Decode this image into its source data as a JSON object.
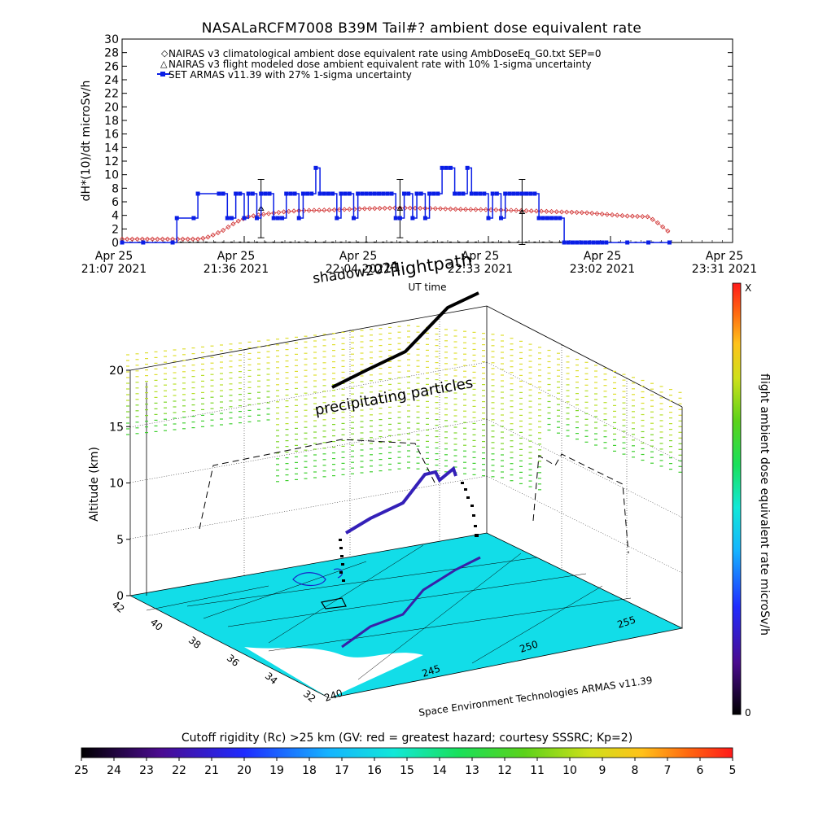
{
  "figure_title": "NASALaRCFM7008  B39M Tail#? ambient dose equivalent rate",
  "chart_data": [
    {
      "type": "line",
      "title": "NASALaRCFM7008  B39M Tail#? ambient dose equivalent rate",
      "ylabel": "dH*(10)/dt microSv/h",
      "xlabel": "UT time",
      "ylim": [
        0,
        30
      ],
      "y_ticks": [
        "0",
        "2",
        "4",
        "6",
        "8",
        "10",
        "12",
        "14",
        "16",
        "18",
        "20",
        "22",
        "24",
        "26",
        "28",
        "30"
      ],
      "x_ticks": [
        {
          "line1": "Apr 25",
          "line2": "21:07 2021"
        },
        {
          "line1": "Apr 25",
          "line2": "21:36 2021"
        },
        {
          "line1": "Apr 25",
          "line2": "22:04 2021"
        },
        {
          "line1": "Apr 25",
          "line2": "22:33 2021"
        },
        {
          "line1": "Apr 25",
          "line2": "23:02 2021"
        },
        {
          "line1": "Apr 25",
          "line2": "23:31 2021"
        }
      ],
      "x_unit": "minutes after 21:07 UT",
      "xlim": [
        0,
        145
      ],
      "legend_position": "top-left",
      "legend": [
        "NAIRAS v3 climatological ambient dose equivalent rate using AmbDoseEq_G0.txt SEP=0",
        "NAIRAS v3 flight modeled dose ambient equivalent rate with 10% 1-sigma uncertainty",
        "SET ARMAS v11.39 with 27% 1-sigma uncertainty"
      ],
      "series": [
        {
          "name": "NAIRAS v3 climatological ambient dose equivalent rate using AmbDoseEq_G0.txt SEP=0",
          "color": "#d03030",
          "x": [
            0,
            12,
            18,
            20,
            22,
            24,
            26,
            28,
            30,
            34,
            38,
            42,
            50,
            58,
            66,
            75,
            80,
            90,
            100,
            110,
            116,
            120,
            125,
            127,
            128,
            129,
            130
          ],
          "y": [
            0.5,
            0.5,
            0.5,
            0.7,
            1.2,
            1.8,
            2.6,
            3.3,
            3.8,
            4.2,
            4.5,
            4.7,
            4.8,
            5.0,
            5.1,
            5.0,
            4.9,
            4.8,
            4.6,
            4.4,
            4.1,
            3.9,
            3.8,
            3.0,
            2.5,
            2.0,
            1.5
          ]
        },
        {
          "name": "NAIRAS v3 flight modeled dose ambient equivalent rate with 10% 1-sigma uncertainty",
          "color": "#000000",
          "x": [
            33,
            66,
            95
          ],
          "y": [
            5.0,
            5.0,
            4.5
          ],
          "err": [
            4.3,
            4.3,
            4.8
          ]
        },
        {
          "name": "SET ARMAS v11.39 with 27% 1-sigma uncertainty",
          "color": "#0a1ee6",
          "x": [
            0,
            5,
            12,
            13,
            17,
            18,
            23,
            24,
            25,
            26,
            27,
            28,
            29,
            30,
            31,
            32,
            33,
            34,
            35,
            36,
            37,
            38,
            39,
            40,
            41,
            42,
            43,
            44,
            45,
            46,
            47,
            48,
            49,
            50,
            51,
            52,
            53,
            54,
            55,
            56,
            57,
            58,
            59,
            60,
            61,
            62,
            63,
            64,
            65,
            66,
            67,
            68,
            69,
            70,
            71,
            72,
            73,
            74,
            75,
            76,
            77,
            78,
            79,
            80,
            81,
            82,
            83,
            84,
            85,
            86,
            87,
            88,
            89,
            90,
            91,
            92,
            93,
            94,
            95,
            96,
            97,
            98,
            99,
            100,
            101,
            102,
            103,
            104,
            105,
            106,
            107,
            108,
            109,
            110,
            111,
            112,
            113,
            114,
            115,
            120,
            125,
            130
          ],
          "y": [
            0,
            0,
            0,
            3.6,
            3.6,
            7.2,
            7.2,
            7.2,
            3.6,
            3.6,
            7.2,
            7.2,
            3.6,
            7.2,
            7.2,
            3.6,
            7.2,
            7.2,
            7.2,
            3.6,
            3.6,
            3.6,
            7.2,
            7.2,
            7.2,
            3.6,
            7.2,
            7.2,
            7.2,
            11,
            7.2,
            7.2,
            7.2,
            7.2,
            3.6,
            7.2,
            7.2,
            7.2,
            3.6,
            7.2,
            7.2,
            7.2,
            7.2,
            7.2,
            7.2,
            7.2,
            7.2,
            7.2,
            3.6,
            3.6,
            7.2,
            7.2,
            3.6,
            7.2,
            7.2,
            3.6,
            7.2,
            7.2,
            7.2,
            11,
            11,
            11,
            7.2,
            7.2,
            7.2,
            11,
            7.2,
            7.2,
            7.2,
            7.2,
            3.6,
            7.2,
            7.2,
            3.6,
            7.2,
            7.2,
            7.2,
            7.2,
            7.2,
            7.2,
            7.2,
            7.2,
            3.6,
            3.6,
            3.6,
            3.6,
            3.6,
            3.6,
            0,
            0,
            0,
            0,
            0,
            0,
            0,
            0,
            0,
            0,
            0,
            0,
            0,
            0
          ]
        }
      ]
    },
    {
      "type": "scatter",
      "title": "flightpath",
      "zlabel": "Altitude (km)",
      "z_ticks": [
        "0",
        "5",
        "10",
        "15",
        "20"
      ],
      "zlim": [
        0,
        20
      ],
      "y_ticks": [
        "42",
        "40",
        "38",
        "36",
        "34",
        "32"
      ],
      "x_ticks": [
        "240",
        "245",
        "250",
        "255"
      ],
      "annotations": [
        "flightpath",
        "shadow2021",
        "precipitating particles",
        "UT time"
      ],
      "credit": "Space Environment Technologies ARMAS v11.39",
      "colorbar": {
        "label": "flight ambient dose equivalent rate microSv/h",
        "top_label": "X",
        "bottom_label": "0"
      }
    }
  ],
  "cutoff_bar": {
    "title": "Cutoff rigidity (Rc) >25 km (GV: red = greatest hazard; courtesy SSSRC; Kp=2)",
    "labels": [
      "25",
      "24",
      "23",
      "22",
      "21",
      "20",
      "19",
      "18",
      "17",
      "16",
      "15",
      "14",
      "13",
      "12",
      "11",
      "10",
      "9",
      "8",
      "7",
      "6",
      "5"
    ]
  }
}
